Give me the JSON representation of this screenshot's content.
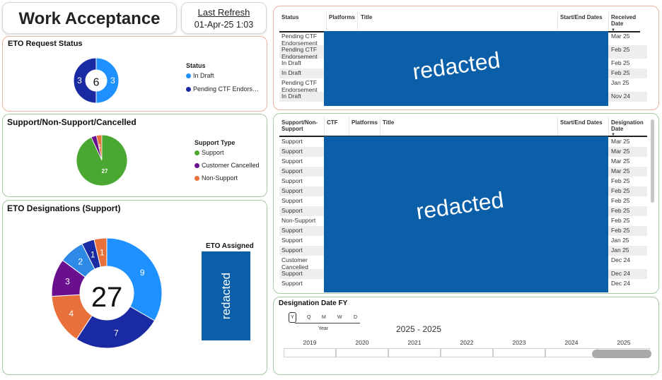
{
  "header": {
    "title": "Work Acceptance",
    "refresh_label": "Last Refresh",
    "refresh_value": "01-Apr-25 1:03"
  },
  "eto_status": {
    "title": "ETO Request Status",
    "total": "6",
    "legend_title": "Status",
    "segments": [
      {
        "label": "In Draft",
        "value": 3,
        "color": "#1e90ff"
      },
      {
        "label": "Pending CTF Endors…",
        "value": 3,
        "color": "#1a2aa3"
      }
    ]
  },
  "support_type": {
    "title": "Support/Non-Support/Cancelled",
    "legend_title": "Support Type",
    "segments": [
      {
        "label": "Support",
        "value": 27,
        "color": "#4aa832"
      },
      {
        "label": "Customer Cancelled",
        "value": 1,
        "color": "#6a0f8e"
      },
      {
        "label": "Non-Support",
        "value": 1,
        "color": "#e8703a"
      }
    ],
    "data_labels": [
      "27",
      "1"
    ]
  },
  "designations": {
    "title": "ETO Designations (Support)",
    "total": "27",
    "segments": [
      {
        "value": 9,
        "color": "#1e90ff"
      },
      {
        "value": 7,
        "color": "#1a2aa3"
      },
      {
        "value": 4,
        "color": "#e8703a"
      },
      {
        "value": 3,
        "color": "#6a0f8e"
      },
      {
        "value": 2,
        "color": "#2e8ae6"
      },
      {
        "value": 1,
        "color": "#1a2aa3"
      },
      {
        "value": 1,
        "color": "#e8703a"
      }
    ],
    "assigned_title": "ETO Assigned",
    "assigned_redacted": "redacted"
  },
  "table1": {
    "headers": [
      "Status",
      "Platforms",
      "Title",
      "Start/End Dates",
      "Received Date"
    ],
    "redacted": "redacted",
    "rows": [
      {
        "status": "Pending CTF Endorsement",
        "date": "Mar 25"
      },
      {
        "status": "Pending CTF Endorsement",
        "date": "Feb 25"
      },
      {
        "status": "In Draft",
        "date": "Feb 25"
      },
      {
        "status": "In Draft",
        "date": "Feb 25"
      },
      {
        "status": "Pending CTF Endorsement",
        "date": "Jan 25"
      },
      {
        "status": "In Draft",
        "date": "Nov 24"
      }
    ]
  },
  "table2": {
    "headers": [
      "Support/Non-Support",
      "CTF",
      "Platforms",
      "Title",
      "Start/End Dates",
      "Designation Date"
    ],
    "redacted": "redacted",
    "rows": [
      {
        "type": "Support",
        "date": "Mar 25"
      },
      {
        "type": "Support",
        "date": "Mar 25"
      },
      {
        "type": "Support",
        "date": "Mar 25"
      },
      {
        "type": "Support",
        "date": "Mar 25"
      },
      {
        "type": "Support",
        "date": "Feb 25"
      },
      {
        "type": "Support",
        "date": "Feb 25"
      },
      {
        "type": "Support",
        "date": "Feb 25"
      },
      {
        "type": "Support",
        "date": "Feb 25"
      },
      {
        "type": "Non-Support",
        "date": "Feb 25"
      },
      {
        "type": "Support",
        "date": "Feb 25"
      },
      {
        "type": "Support",
        "date": "Jan 25"
      },
      {
        "type": "Support",
        "date": "Jan 25"
      },
      {
        "type": "Customer Cancelled",
        "date": "Dec 24"
      },
      {
        "type": "Support",
        "date": "Dec 24"
      },
      {
        "type": "Support",
        "date": "Dec 24"
      }
    ]
  },
  "slicer": {
    "title": "Designation Date FY",
    "granularity": [
      "Y",
      "Q",
      "M",
      "W",
      "D"
    ],
    "granularity_selected": "Year",
    "range_label": "2025 - 2025",
    "years": [
      "2019",
      "2020",
      "2021",
      "2022",
      "2023",
      "2024",
      "2025"
    ]
  }
}
